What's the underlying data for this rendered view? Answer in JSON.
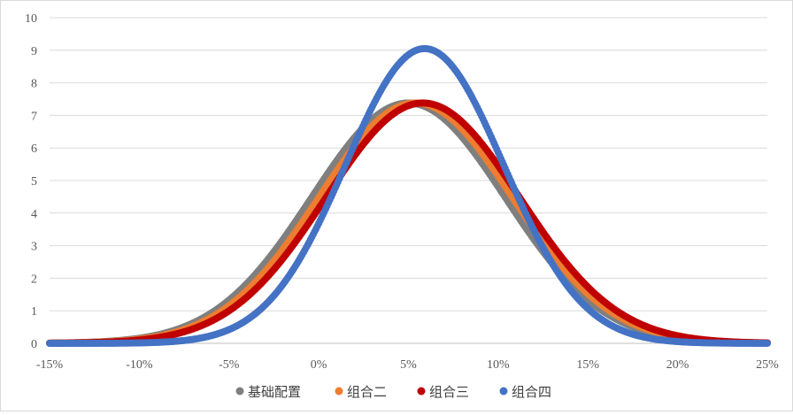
{
  "chart_data": {
    "type": "scatter",
    "title": "",
    "xlabel": "",
    "ylabel": "",
    "xlim": [
      -0.15,
      0.25
    ],
    "ylim": [
      0,
      10
    ],
    "x_ticks": [
      -0.15,
      -0.1,
      -0.05,
      0.0,
      0.05,
      0.1,
      0.15,
      0.2,
      0.25
    ],
    "x_tick_labels": [
      "-15%",
      "-10%",
      "-5%",
      "0%",
      "5%",
      "10%",
      "15%",
      "20%",
      "25%"
    ],
    "y_ticks": [
      0,
      1,
      2,
      3,
      4,
      5,
      6,
      7,
      8,
      9,
      10
    ],
    "y_tick_labels": [
      "0",
      "1",
      "2",
      "3",
      "4",
      "5",
      "6",
      "7",
      "8",
      "9",
      "10"
    ],
    "grid": "horizontal",
    "legend_position": "bottom",
    "series": [
      {
        "name": "基础配置",
        "color": "#7f7f7f",
        "mean": 0.05,
        "std": 0.054,
        "peak": 7.38
      },
      {
        "name": "组合二",
        "color": "#ed7d31",
        "mean": 0.054,
        "std": 0.054,
        "peak": 7.38
      },
      {
        "name": "组合三",
        "color": "#c00000",
        "mean": 0.058,
        "std": 0.054,
        "peak": 7.38
      },
      {
        "name": "组合四",
        "color": "#4472c4",
        "mean": 0.059,
        "std": 0.044,
        "peak": 9.05
      }
    ]
  }
}
